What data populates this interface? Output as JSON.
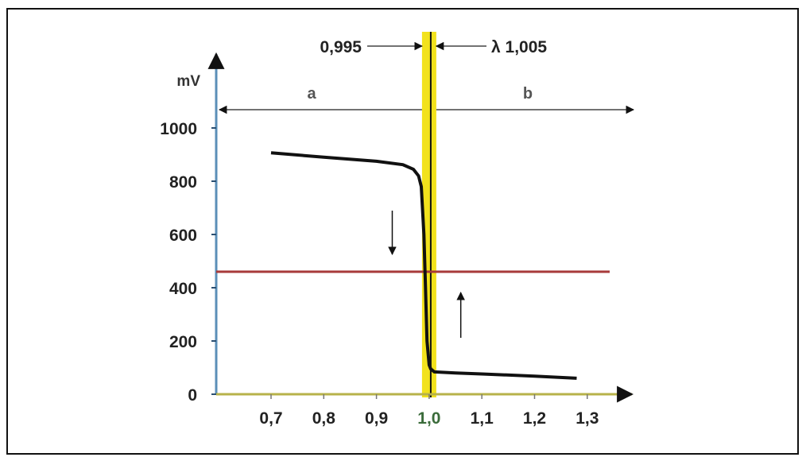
{
  "chart_data": {
    "type": "line",
    "title": "",
    "xlabel": "",
    "ylabel": "mV",
    "xlim": [
      0.6,
      1.39
    ],
    "ylim": [
      0,
      1100
    ],
    "x_ticks": [
      0.7,
      0.8,
      0.9,
      1.0,
      1.1,
      1.2,
      1.3
    ],
    "x_tick_labels": [
      "0,7",
      "0,8",
      "0,9",
      "1,0",
      "1,1",
      "1,2",
      "1,3"
    ],
    "y_ticks": [
      0,
      200,
      400,
      600,
      800,
      1000
    ],
    "y_tick_labels": [
      "0",
      "200",
      "400",
      "600",
      "800",
      "1000"
    ],
    "grid": false,
    "series": [
      {
        "x": [
          0.7,
          0.8,
          0.9,
          0.95,
          0.97,
          0.98,
          0.985,
          0.99,
          0.993,
          0.996,
          1.0,
          1.003,
          1.01,
          1.05,
          1.1,
          1.2,
          1.28
        ],
        "y": [
          907,
          890,
          875,
          862,
          845,
          820,
          780,
          600,
          400,
          200,
          110,
          95,
          84,
          80,
          76,
          68,
          60
        ],
        "color": "#111111"
      }
    ],
    "reference_line": {
      "y": 460,
      "color": "#a83a3a"
    },
    "band": {
      "x": [
        0.995,
        1.005
      ],
      "color": "#f2e21c",
      "center_line": 1.0
    },
    "band_labels": {
      "left": "0,995",
      "right": "λ 1,005"
    },
    "regions": [
      {
        "label": "a",
        "x": [
          0.6,
          0.995
        ]
      },
      {
        "label": "b",
        "x": [
          1.005,
          1.39
        ]
      }
    ],
    "arrows": [
      {
        "direction": "down",
        "x": 0.93
      },
      {
        "direction": "up",
        "x": 1.06
      }
    ],
    "colors": {
      "y_axis": "#5b8fb8",
      "x_axis": "#b7b24a",
      "text": "#222222"
    }
  }
}
